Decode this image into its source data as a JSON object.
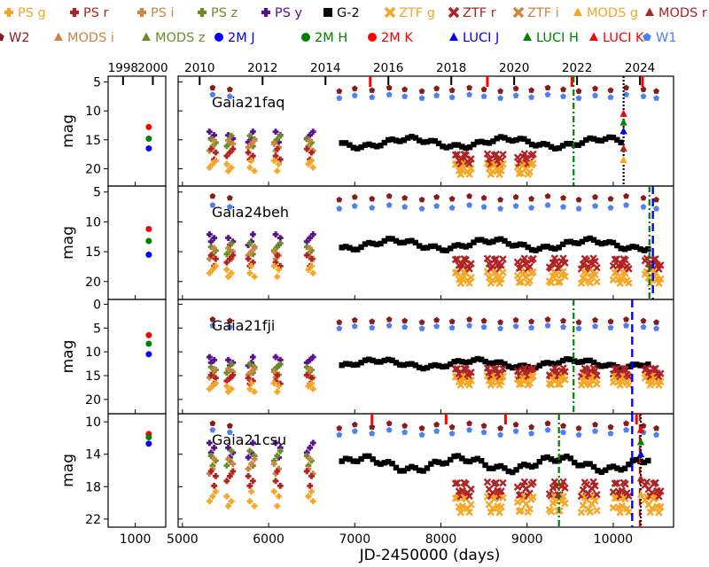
{
  "chart_data": {
    "type": "scatter",
    "xlabel": "JD-2450000 (days)",
    "ylabel": "mag",
    "legend_placement": "top",
    "left_xlim": [
      600,
      1450
    ],
    "left_xticks": [
      1000
    ],
    "right_xlim": [
      4950,
      10700
    ],
    "right_xticks": [
      5000,
      6000,
      7000,
      8000,
      9000,
      10000
    ],
    "year_ticks": [
      {
        "label": "1998",
        "jd": 820
      },
      {
        "label": "2000",
        "jd": 1260
      },
      {
        "label": "2010",
        "jd": 5200
      },
      {
        "label": "2012",
        "jd": 5930
      },
      {
        "label": "2014",
        "jd": 6660
      },
      {
        "label": "2016",
        "jd": 7390
      },
      {
        "label": "2018",
        "jd": 8120
      },
      {
        "label": "2020",
        "jd": 8850
      },
      {
        "label": "2022",
        "jd": 9580
      },
      {
        "label": "2024",
        "jd": 10310
      }
    ],
    "legend": [
      {
        "name": "PS g",
        "color": "#f5a623",
        "marker": "plus"
      },
      {
        "name": "PS r",
        "color": "#b22222",
        "marker": "plus"
      },
      {
        "name": "PS i",
        "color": "#cd853f",
        "marker": "plus"
      },
      {
        "name": "PS z",
        "color": "#6b8e23",
        "marker": "plus"
      },
      {
        "name": "PS y",
        "color": "#5b0f91",
        "marker": "plus"
      },
      {
        "name": "G-2",
        "color": "#000000",
        "marker": "square"
      },
      {
        "name": "ZTF g",
        "color": "#f5a623",
        "marker": "x"
      },
      {
        "name": "ZTF r",
        "color": "#b22222",
        "marker": "x"
      },
      {
        "name": "ZTF i",
        "color": "#cd853f",
        "marker": "x"
      },
      {
        "name": "MODS g",
        "color": "#f5a623",
        "marker": "triangle"
      },
      {
        "name": "MODS r",
        "color": "#b22222",
        "marker": "triangle"
      },
      {
        "name": "MODS i",
        "color": "#cd853f",
        "marker": "triangle"
      },
      {
        "name": "MODS z",
        "color": "#6b8e23",
        "marker": "triangle"
      },
      {
        "name": "2M J",
        "color": "#0000ff",
        "marker": "circle"
      },
      {
        "name": "2M H",
        "color": "#008000",
        "marker": "circle"
      },
      {
        "name": "2M K",
        "color": "#ff0000",
        "marker": "circle"
      },
      {
        "name": "LUCI J",
        "color": "#0000ff",
        "marker": "triangle"
      },
      {
        "name": "LUCI H",
        "color": "#008000",
        "marker": "triangle"
      },
      {
        "name": "LUCI K",
        "color": "#ff0000",
        "marker": "triangle"
      },
      {
        "name": "W1",
        "color": "#4f7ff0",
        "marker": "pentagon"
      },
      {
        "name": "W2",
        "color": "#8b1a1a",
        "marker": "pentagon"
      }
    ],
    "panels": [
      {
        "name": "Gaia21faq",
        "ylim": [
          4,
          23
        ],
        "yticks": [
          5,
          10,
          15,
          20
        ],
        "twomass": {
          "J": 16.5,
          "H": 14.8,
          "K": 12.8
        },
        "wise_w2": 6.3,
        "wise_w1": 7.5,
        "g2_level": 15.5,
        "ztf": {
          "r": 18.3,
          "g": 20.0,
          "start": 8200,
          "end": 9050
        },
        "ps": {
          "y": 14.5,
          "z": 15.2,
          "i": 16.0,
          "r": 17.5,
          "g": 19.5
        },
        "alerts_green": [
          9540
        ],
        "alerts_blue": [],
        "alerts_red": [],
        "spectra_jd": 10120,
        "red_epochs": [
          7180,
          8540,
          9520,
          10340
        ]
      },
      {
        "name": "Gaia24beh",
        "ylim": [
          4,
          23
        ],
        "yticks": [
          5,
          10,
          15,
          20
        ],
        "twomass": {
          "J": 15.5,
          "H": 13.2,
          "K": 11.2
        },
        "wise_w2": 6.0,
        "wise_w1": 7.5,
        "g2_level": 13.8,
        "ztf": {
          "r": 17.0,
          "g": 19.3,
          "start": 8200,
          "end": 10700
        },
        "ps": {
          "y": 13.0,
          "z": 14.5,
          "i": 15.3,
          "r": 16.5,
          "g": 18.3
        },
        "alerts_green": [
          10420
        ],
        "alerts_blue": [
          10460
        ],
        "alerts_red": [],
        "spectra_jd": null,
        "red_epochs": []
      },
      {
        "name": "Gaia21fji",
        "ylim": [
          -1,
          23
        ],
        "yticks": [
          0,
          5,
          10,
          15,
          20
        ],
        "twomass": {
          "J": 10.5,
          "H": 8.3,
          "K": 6.5
        },
        "wise_w2": 3.5,
        "wise_w1": 4.8,
        "g2_level": 12.5,
        "ztf": {
          "r": 14.3,
          "g": 16.0,
          "start": 8200,
          "end": 10700
        },
        "ps": {
          "y": 12.0,
          "z": 13.5,
          "i": 14.5,
          "r": 15.8,
          "g": 17.5
        },
        "alerts_green": [
          9540
        ],
        "alerts_blue": [
          10220
        ],
        "alerts_red": [],
        "spectra_jd": null,
        "red_epochs": []
      },
      {
        "name": "Gaia21csu",
        "ylim": [
          9,
          23
        ],
        "yticks": [
          10,
          14,
          18,
          22
        ],
        "twomass": {
          "J": 12.7,
          "H": 11.9,
          "K": 11.5
        },
        "wise_w2": 10.5,
        "wise_w1": 11.3,
        "g2_level": 15.2,
        "ztf": {
          "r": 18.3,
          "g": 20.2,
          "start": 8200,
          "end": 10700
        },
        "ps": {
          "y": 13.5,
          "z": 14.5,
          "i": 15.5,
          "r": 17.0,
          "g": 19.5
        },
        "alerts_green": [
          9370
        ],
        "alerts_blue": [
          10220
        ],
        "alerts_red": [
          10310
        ],
        "spectra_jd": 10320,
        "red_epochs": [
          7200,
          8060,
          8750,
          10270
        ]
      }
    ]
  }
}
